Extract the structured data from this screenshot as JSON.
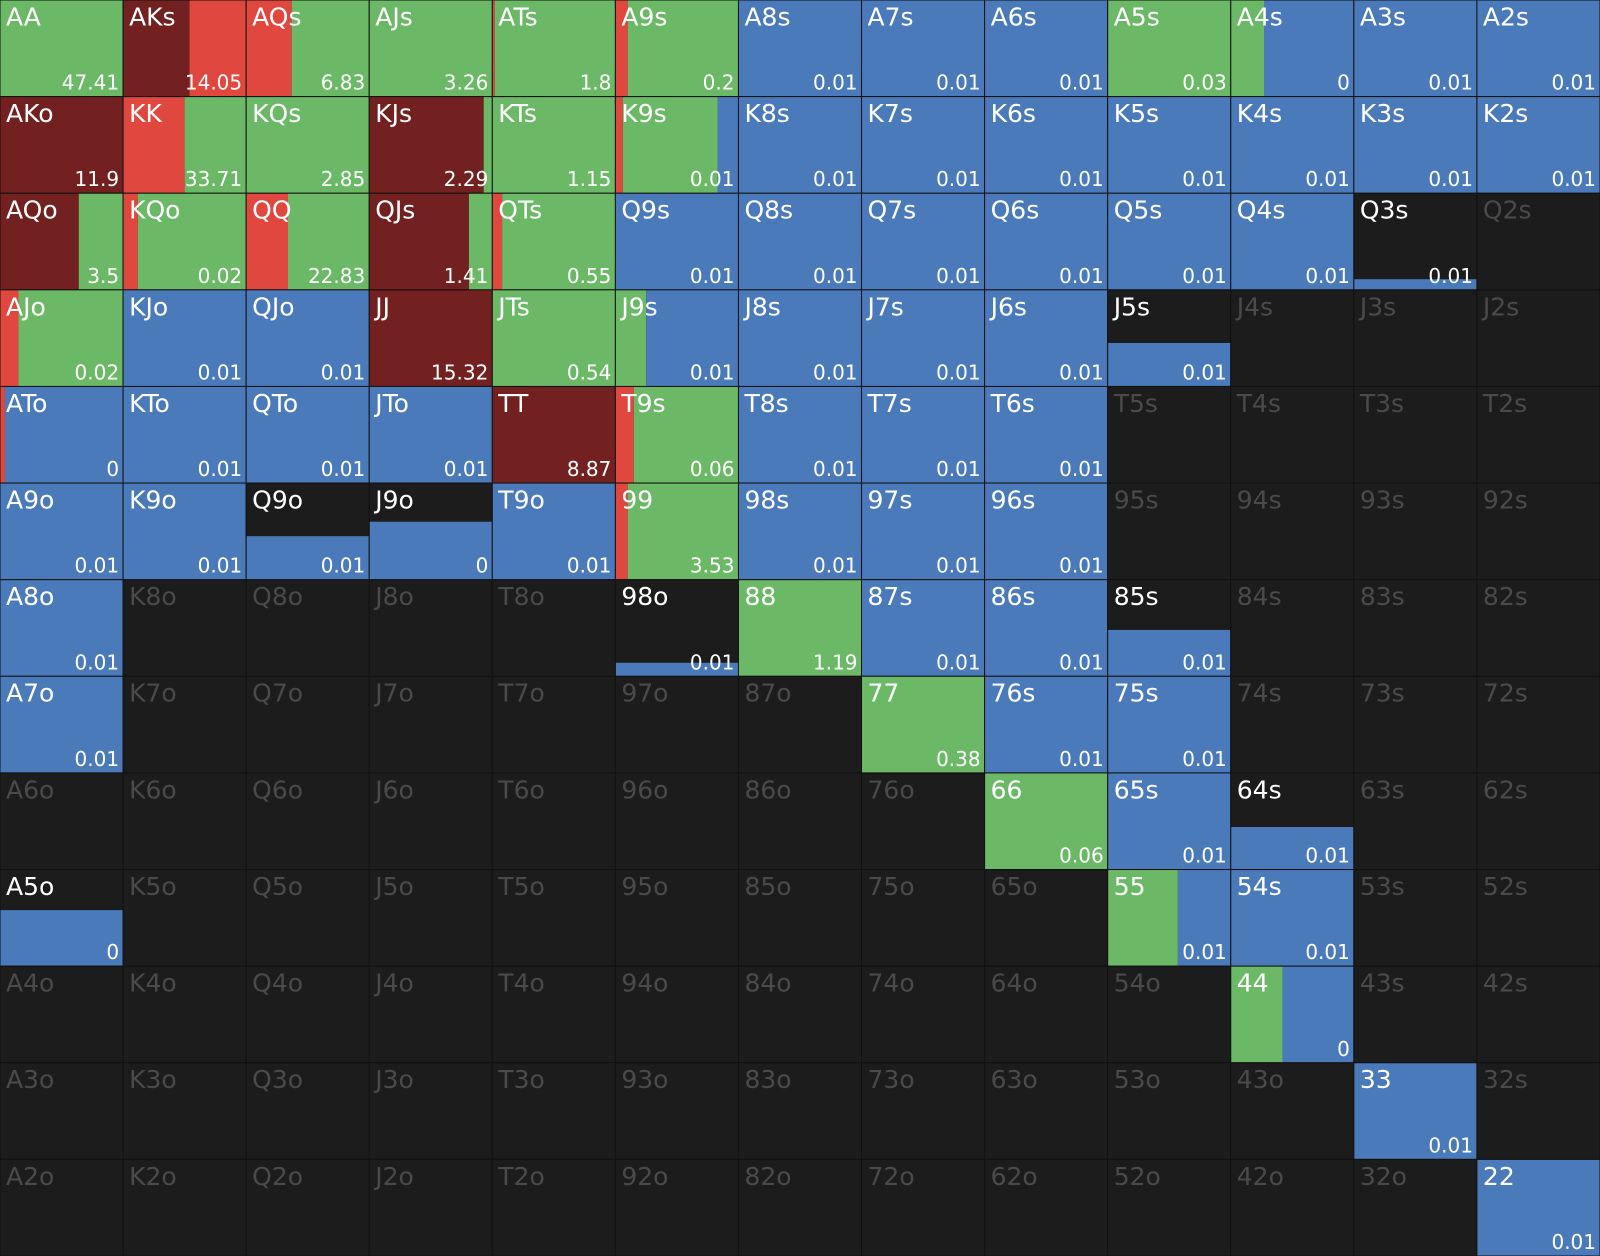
{
  "range": {
    "colors": [
      "#732020",
      "#e0473f",
      "#6bb966",
      "#4a7aba"
    ],
    "rows": [
      [
        {
          "hand": "AA",
          "value": 47.41,
          "mix": [
            0,
            0,
            100,
            0
          ]
        },
        {
          "hand": "AKs",
          "value": 14.05,
          "mix": [
            54,
            46,
            0,
            0
          ]
        },
        {
          "hand": "AQs",
          "value": 6.83,
          "mix": [
            0,
            37,
            63,
            0
          ]
        },
        {
          "hand": "AJs",
          "value": 3.26,
          "mix": [
            0,
            0,
            100,
            0
          ]
        },
        {
          "hand": "ATs",
          "value": 1.8,
          "mix": [
            0,
            2,
            98,
            0
          ]
        },
        {
          "hand": "A9s",
          "value": 0.2,
          "mix": [
            0,
            10,
            90,
            0
          ]
        },
        {
          "hand": "A8s",
          "value": 0.01,
          "mix": [
            0,
            0,
            0,
            100
          ]
        },
        {
          "hand": "A7s",
          "value": 0.01,
          "mix": [
            0,
            0,
            0,
            100
          ]
        },
        {
          "hand": "A6s",
          "value": 0.01,
          "mix": [
            0,
            0,
            0,
            100
          ]
        },
        {
          "hand": "A5s",
          "value": 0.03,
          "mix": [
            0,
            0,
            100,
            0
          ]
        },
        {
          "hand": "A4s",
          "value": 0,
          "mix": [
            0,
            0,
            27,
            73
          ]
        },
        {
          "hand": "A3s",
          "value": 0.01,
          "mix": [
            0,
            0,
            0,
            100
          ]
        },
        {
          "hand": "A2s",
          "value": 0.01,
          "mix": [
            0,
            0,
            0,
            100
          ]
        }
      ],
      [
        {
          "hand": "AKo",
          "value": 11.9,
          "mix": [
            100,
            0,
            0,
            0
          ]
        },
        {
          "hand": "KK",
          "value": 33.71,
          "mix": [
            0,
            50,
            50,
            0
          ]
        },
        {
          "hand": "KQs",
          "value": 2.85,
          "mix": [
            0,
            0,
            100,
            0
          ]
        },
        {
          "hand": "KJs",
          "value": 2.29,
          "mix": [
            93,
            0,
            7,
            0
          ]
        },
        {
          "hand": "KTs",
          "value": 1.15,
          "mix": [
            0,
            0,
            100,
            0
          ]
        },
        {
          "hand": "K9s",
          "value": 0.01,
          "mix": [
            0,
            6,
            77,
            17
          ]
        },
        {
          "hand": "K8s",
          "value": 0.01,
          "mix": [
            0,
            0,
            0,
            100
          ]
        },
        {
          "hand": "K7s",
          "value": 0.01,
          "mix": [
            0,
            0,
            0,
            100
          ]
        },
        {
          "hand": "K6s",
          "value": 0.01,
          "mix": [
            0,
            0,
            0,
            100
          ]
        },
        {
          "hand": "K5s",
          "value": 0.01,
          "mix": [
            0,
            0,
            0,
            100
          ]
        },
        {
          "hand": "K4s",
          "value": 0.01,
          "mix": [
            0,
            0,
            0,
            100
          ]
        },
        {
          "hand": "K3s",
          "value": 0.01,
          "mix": [
            0,
            0,
            0,
            100
          ]
        },
        {
          "hand": "K2s",
          "value": 0.01,
          "mix": [
            0,
            0,
            0,
            100
          ]
        }
      ],
      [
        {
          "hand": "AQo",
          "value": 3.5,
          "mix": [
            64,
            0,
            36,
            0
          ]
        },
        {
          "hand": "KQo",
          "value": 0.02,
          "mix": [
            0,
            12,
            88,
            0
          ]
        },
        {
          "hand": "QQ",
          "value": 22.83,
          "mix": [
            0,
            34,
            66,
            0
          ]
        },
        {
          "hand": "QJs",
          "value": 1.41,
          "mix": [
            81,
            0,
            19,
            0
          ]
        },
        {
          "hand": "QTs",
          "value": 0.55,
          "mix": [
            0,
            8,
            92,
            0
          ]
        },
        {
          "hand": "Q9s",
          "value": 0.01,
          "mix": [
            0,
            0,
            0,
            100
          ]
        },
        {
          "hand": "Q8s",
          "value": 0.01,
          "mix": [
            0,
            0,
            0,
            100
          ]
        },
        {
          "hand": "Q7s",
          "value": 0.01,
          "mix": [
            0,
            0,
            0,
            100
          ]
        },
        {
          "hand": "Q6s",
          "value": 0.01,
          "mix": [
            0,
            0,
            0,
            100
          ]
        },
        {
          "hand": "Q5s",
          "value": 0.01,
          "mix": [
            0,
            0,
            0,
            100
          ]
        },
        {
          "hand": "Q4s",
          "value": 0.01,
          "mix": [
            0,
            0,
            0,
            100
          ]
        },
        {
          "hand": "Q3s",
          "value": 0.01,
          "mix": [
            0,
            0,
            0,
            100
          ],
          "weight": 0.11
        },
        {
          "hand": "Q2s"
        }
      ],
      [
        {
          "hand": "AJo",
          "value": 0.02,
          "mix": [
            0,
            15,
            85,
            0
          ]
        },
        {
          "hand": "KJo",
          "value": 0.01,
          "mix": [
            0,
            0,
            0,
            100
          ]
        },
        {
          "hand": "QJo",
          "value": 0.01,
          "mix": [
            0,
            0,
            0,
            100
          ]
        },
        {
          "hand": "JJ",
          "value": 15.32,
          "mix": [
            100,
            0,
            0,
            0
          ]
        },
        {
          "hand": "JTs",
          "value": 0.54,
          "mix": [
            0,
            0,
            100,
            0
          ]
        },
        {
          "hand": "J9s",
          "value": 0.01,
          "mix": [
            0,
            0,
            25,
            75
          ]
        },
        {
          "hand": "J8s",
          "value": 0.01,
          "mix": [
            0,
            0,
            0,
            100
          ]
        },
        {
          "hand": "J7s",
          "value": 0.01,
          "mix": [
            0,
            0,
            0,
            100
          ]
        },
        {
          "hand": "J6s",
          "value": 0.01,
          "mix": [
            0,
            0,
            0,
            100
          ]
        },
        {
          "hand": "J5s",
          "value": 0.01,
          "mix": [
            0,
            0,
            0,
            100
          ],
          "weight": 0.45
        },
        {
          "hand": "J4s"
        },
        {
          "hand": "J3s"
        },
        {
          "hand": "J2s"
        }
      ],
      [
        {
          "hand": "ATo",
          "value": 0,
          "mix": [
            0,
            4,
            0,
            96
          ]
        },
        {
          "hand": "KTo",
          "value": 0.01,
          "mix": [
            0,
            0,
            0,
            100
          ]
        },
        {
          "hand": "QTo",
          "value": 0.01,
          "mix": [
            0,
            0,
            0,
            100
          ]
        },
        {
          "hand": "JTo",
          "value": 0.01,
          "mix": [
            0,
            0,
            0,
            100
          ]
        },
        {
          "hand": "TT",
          "value": 8.87,
          "mix": [
            100,
            0,
            0,
            0
          ]
        },
        {
          "hand": "T9s",
          "value": 0.06,
          "mix": [
            0,
            15,
            85,
            0
          ]
        },
        {
          "hand": "T8s",
          "value": 0.01,
          "mix": [
            0,
            0,
            0,
            100
          ]
        },
        {
          "hand": "T7s",
          "value": 0.01,
          "mix": [
            0,
            0,
            0,
            100
          ]
        },
        {
          "hand": "T6s",
          "value": 0.01,
          "mix": [
            0,
            0,
            0,
            100
          ]
        },
        {
          "hand": "T5s"
        },
        {
          "hand": "T4s"
        },
        {
          "hand": "T3s"
        },
        {
          "hand": "T2s"
        }
      ],
      [
        {
          "hand": "A9o",
          "value": 0.01,
          "mix": [
            0,
            0,
            0,
            100
          ]
        },
        {
          "hand": "K9o",
          "value": 0.01,
          "mix": [
            0,
            0,
            0,
            100
          ]
        },
        {
          "hand": "Q9o",
          "value": 0.01,
          "mix": [
            0,
            0,
            0,
            100
          ],
          "weight": 0.45
        },
        {
          "hand": "J9o",
          "value": 0,
          "mix": [
            0,
            0,
            0,
            100
          ],
          "weight": 0.6
        },
        {
          "hand": "T9o",
          "value": 0.01,
          "mix": [
            0,
            0,
            0,
            100
          ]
        },
        {
          "hand": "99",
          "value": 3.53,
          "mix": [
            0,
            10,
            90,
            0
          ]
        },
        {
          "hand": "98s",
          "value": 0.01,
          "mix": [
            0,
            0,
            0,
            100
          ]
        },
        {
          "hand": "97s",
          "value": 0.01,
          "mix": [
            0,
            0,
            0,
            100
          ]
        },
        {
          "hand": "96s",
          "value": 0.01,
          "mix": [
            0,
            0,
            0,
            100
          ]
        },
        {
          "hand": "95s"
        },
        {
          "hand": "94s"
        },
        {
          "hand": "93s"
        },
        {
          "hand": "92s"
        }
      ],
      [
        {
          "hand": "A8o",
          "value": 0.01,
          "mix": [
            0,
            0,
            0,
            100
          ]
        },
        {
          "hand": "K8o"
        },
        {
          "hand": "Q8o"
        },
        {
          "hand": "J8o"
        },
        {
          "hand": "T8o"
        },
        {
          "hand": "98o",
          "value": 0.01,
          "mix": [
            0,
            0,
            0,
            100
          ],
          "weight": 0.14
        },
        {
          "hand": "88",
          "value": 1.19,
          "mix": [
            0,
            0,
            100,
            0
          ]
        },
        {
          "hand": "87s",
          "value": 0.01,
          "mix": [
            0,
            0,
            0,
            100
          ]
        },
        {
          "hand": "86s",
          "value": 0.01,
          "mix": [
            0,
            0,
            0,
            100
          ]
        },
        {
          "hand": "85s",
          "value": 0.01,
          "mix": [
            0,
            0,
            0,
            100
          ],
          "weight": 0.48
        },
        {
          "hand": "84s"
        },
        {
          "hand": "83s"
        },
        {
          "hand": "82s"
        }
      ],
      [
        {
          "hand": "A7o",
          "value": 0.01,
          "mix": [
            0,
            0,
            0,
            100
          ]
        },
        {
          "hand": "K7o"
        },
        {
          "hand": "Q7o"
        },
        {
          "hand": "J7o"
        },
        {
          "hand": "T7o"
        },
        {
          "hand": "97o"
        },
        {
          "hand": "87o"
        },
        {
          "hand": "77",
          "value": 0.38,
          "mix": [
            0,
            0,
            100,
            0
          ]
        },
        {
          "hand": "76s",
          "value": 0.01,
          "mix": [
            0,
            0,
            0,
            100
          ]
        },
        {
          "hand": "75s",
          "value": 0.01,
          "mix": [
            0,
            0,
            0,
            100
          ]
        },
        {
          "hand": "74s"
        },
        {
          "hand": "73s"
        },
        {
          "hand": "72s"
        }
      ],
      [
        {
          "hand": "A6o"
        },
        {
          "hand": "K6o"
        },
        {
          "hand": "Q6o"
        },
        {
          "hand": "J6o"
        },
        {
          "hand": "T6o"
        },
        {
          "hand": "96o"
        },
        {
          "hand": "86o"
        },
        {
          "hand": "76o"
        },
        {
          "hand": "66",
          "value": 0.06,
          "mix": [
            0,
            0,
            100,
            0
          ]
        },
        {
          "hand": "65s",
          "value": 0.01,
          "mix": [
            0,
            0,
            0,
            100
          ]
        },
        {
          "hand": "64s",
          "value": 0.01,
          "mix": [
            0,
            0,
            0,
            100
          ],
          "weight": 0.44
        },
        {
          "hand": "63s"
        },
        {
          "hand": "62s"
        }
      ],
      [
        {
          "hand": "A5o",
          "value": 0,
          "mix": [
            0,
            0,
            0,
            100
          ],
          "weight": 0.58
        },
        {
          "hand": "K5o"
        },
        {
          "hand": "Q5o"
        },
        {
          "hand": "J5o"
        },
        {
          "hand": "T5o"
        },
        {
          "hand": "95o"
        },
        {
          "hand": "85o"
        },
        {
          "hand": "75o"
        },
        {
          "hand": "65o"
        },
        {
          "hand": "55",
          "value": 0.01,
          "mix": [
            0,
            0,
            57,
            43
          ]
        },
        {
          "hand": "54s",
          "value": 0.01,
          "mix": [
            0,
            0,
            0,
            100
          ]
        },
        {
          "hand": "53s"
        },
        {
          "hand": "52s"
        }
      ],
      [
        {
          "hand": "A4o"
        },
        {
          "hand": "K4o"
        },
        {
          "hand": "Q4o"
        },
        {
          "hand": "J4o"
        },
        {
          "hand": "T4o"
        },
        {
          "hand": "94o"
        },
        {
          "hand": "84o"
        },
        {
          "hand": "74o"
        },
        {
          "hand": "64o"
        },
        {
          "hand": "54o"
        },
        {
          "hand": "44",
          "value": 0,
          "mix": [
            0,
            0,
            42,
            58
          ]
        },
        {
          "hand": "43s"
        },
        {
          "hand": "42s"
        }
      ],
      [
        {
          "hand": "A3o"
        },
        {
          "hand": "K3o"
        },
        {
          "hand": "Q3o"
        },
        {
          "hand": "J3o"
        },
        {
          "hand": "T3o"
        },
        {
          "hand": "93o"
        },
        {
          "hand": "83o"
        },
        {
          "hand": "73o"
        },
        {
          "hand": "63o"
        },
        {
          "hand": "53o"
        },
        {
          "hand": "43o"
        },
        {
          "hand": "33",
          "value": 0.01,
          "mix": [
            0,
            0,
            0,
            100
          ]
        },
        {
          "hand": "32s"
        }
      ],
      [
        {
          "hand": "A2o"
        },
        {
          "hand": "K2o"
        },
        {
          "hand": "Q2o"
        },
        {
          "hand": "J2o"
        },
        {
          "hand": "T2o"
        },
        {
          "hand": "92o"
        },
        {
          "hand": "82o"
        },
        {
          "hand": "72o"
        },
        {
          "hand": "62o"
        },
        {
          "hand": "52o"
        },
        {
          "hand": "42o"
        },
        {
          "hand": "32o"
        },
        {
          "hand": "22",
          "value": 0.01,
          "mix": [
            0,
            0,
            0,
            100
          ]
        }
      ]
    ]
  }
}
